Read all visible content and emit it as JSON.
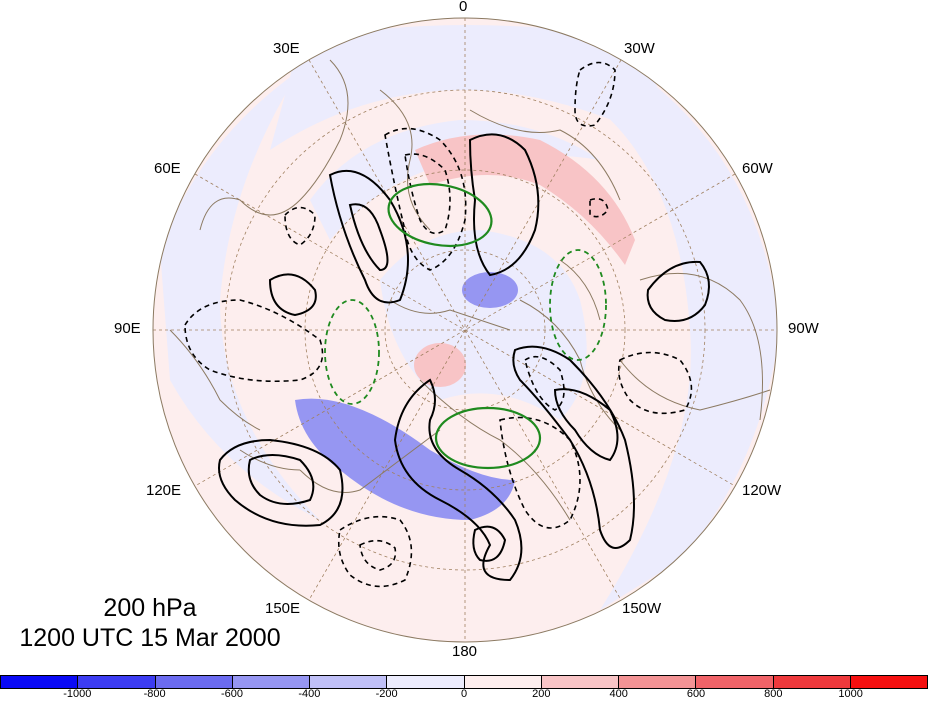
{
  "title": {
    "level": "200 hPa",
    "time": "1200 UTC 15 Mar 2000"
  },
  "projection": "north-polar-stereographic",
  "longitude_labels": [
    "0",
    "30W",
    "60W",
    "90W",
    "120W",
    "150W",
    "180",
    "150E",
    "120E",
    "90E",
    "60E",
    "30E"
  ],
  "colorbar": {
    "ticks": [
      "-1000",
      "-800",
      "-600",
      "-400",
      "-200",
      "0",
      "200",
      "400",
      "600",
      "800",
      "1000"
    ],
    "colors": [
      "#0a0af5",
      "#3c3cf2",
      "#6b6bf0",
      "#9696f2",
      "#c0c0f7",
      "#ececfd",
      "#fdeeee",
      "#f8c4c6",
      "#f39395",
      "#f06368",
      "#ee393c",
      "#f51010"
    ]
  },
  "colors": {
    "contour_solid": "#000000",
    "contour_dashed": "#000000",
    "highlight_contour": "#1f8a1f",
    "coastline": "#8c7a62",
    "graticule": "#a08060"
  }
}
